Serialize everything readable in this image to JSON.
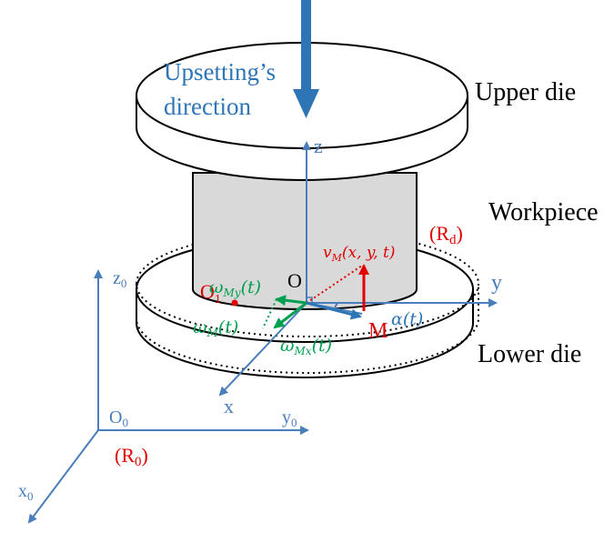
{
  "labels": {
    "upsetting_line1": "Upsetting’s",
    "upsetting_line2": "direction",
    "upper_die": "Upper die",
    "workpiece": "Workpiece",
    "lower_die": "Lower die",
    "frame_d": "(R",
    "frame_d_sub": "d",
    "frame_0": "(R",
    "frame_0_sub": "0",
    "close_paren": ")",
    "axis_z": "z",
    "axis_y": "y",
    "axis_x": "x",
    "origin_o": "O",
    "axis_z0": "z",
    "axis_y0": "y",
    "axis_x0": "x",
    "origin_o0": "O",
    "sub_0": "0",
    "point_o1": "O",
    "sub_1": "1",
    "point_m": "M",
    "alpha": "α(t)",
    "v_m_main": "v",
    "v_m_sub": "M",
    "v_m_args": "(x, y, t)",
    "omega": "ω",
    "omega_my_sub": "My",
    "omega_mx_sub": "Mx",
    "omega_m_sub": "M",
    "time_arg": "(t)"
  },
  "colors": {
    "blue": "#4a7ebb",
    "dark_blue": "#2e75b6",
    "red": "#e00000",
    "green": "#00a050",
    "black": "#000000",
    "workpiece_fill": "#d9d9d9"
  }
}
